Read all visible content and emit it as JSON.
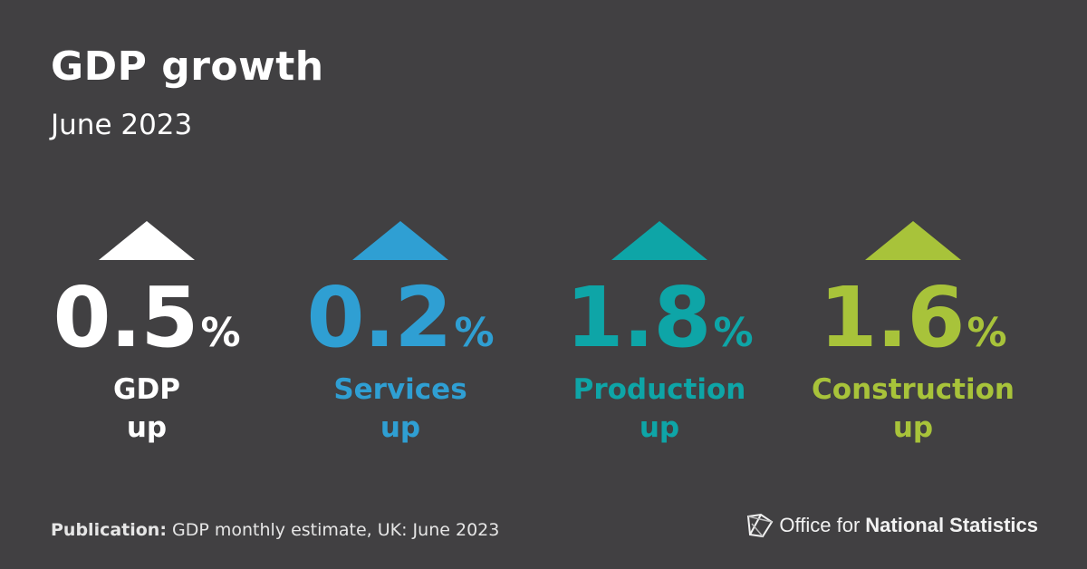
{
  "header": {
    "title": "GDP growth",
    "subtitle": "June 2023"
  },
  "metrics": [
    {
      "value": "0.5",
      "unit": "%",
      "name": "GDP",
      "direction": "up",
      "color": "#ffffff"
    },
    {
      "value": "0.2",
      "unit": "%",
      "name": "Services",
      "direction": "up",
      "color": "#2f9fd3"
    },
    {
      "value": "1.8",
      "unit": "%",
      "name": "Production",
      "direction": "up",
      "color": "#0ea5a7"
    },
    {
      "value": "1.6",
      "unit": "%",
      "name": "Construction",
      "direction": "up",
      "color": "#a8c33a"
    }
  ],
  "footer": {
    "publication_label": "Publication:",
    "publication_text": "GDP monthly estimate, UK: June 2023"
  },
  "logo": {
    "text_regular": "Office for",
    "text_bold": "National Statistics",
    "icon": "ons-logo-icon"
  }
}
